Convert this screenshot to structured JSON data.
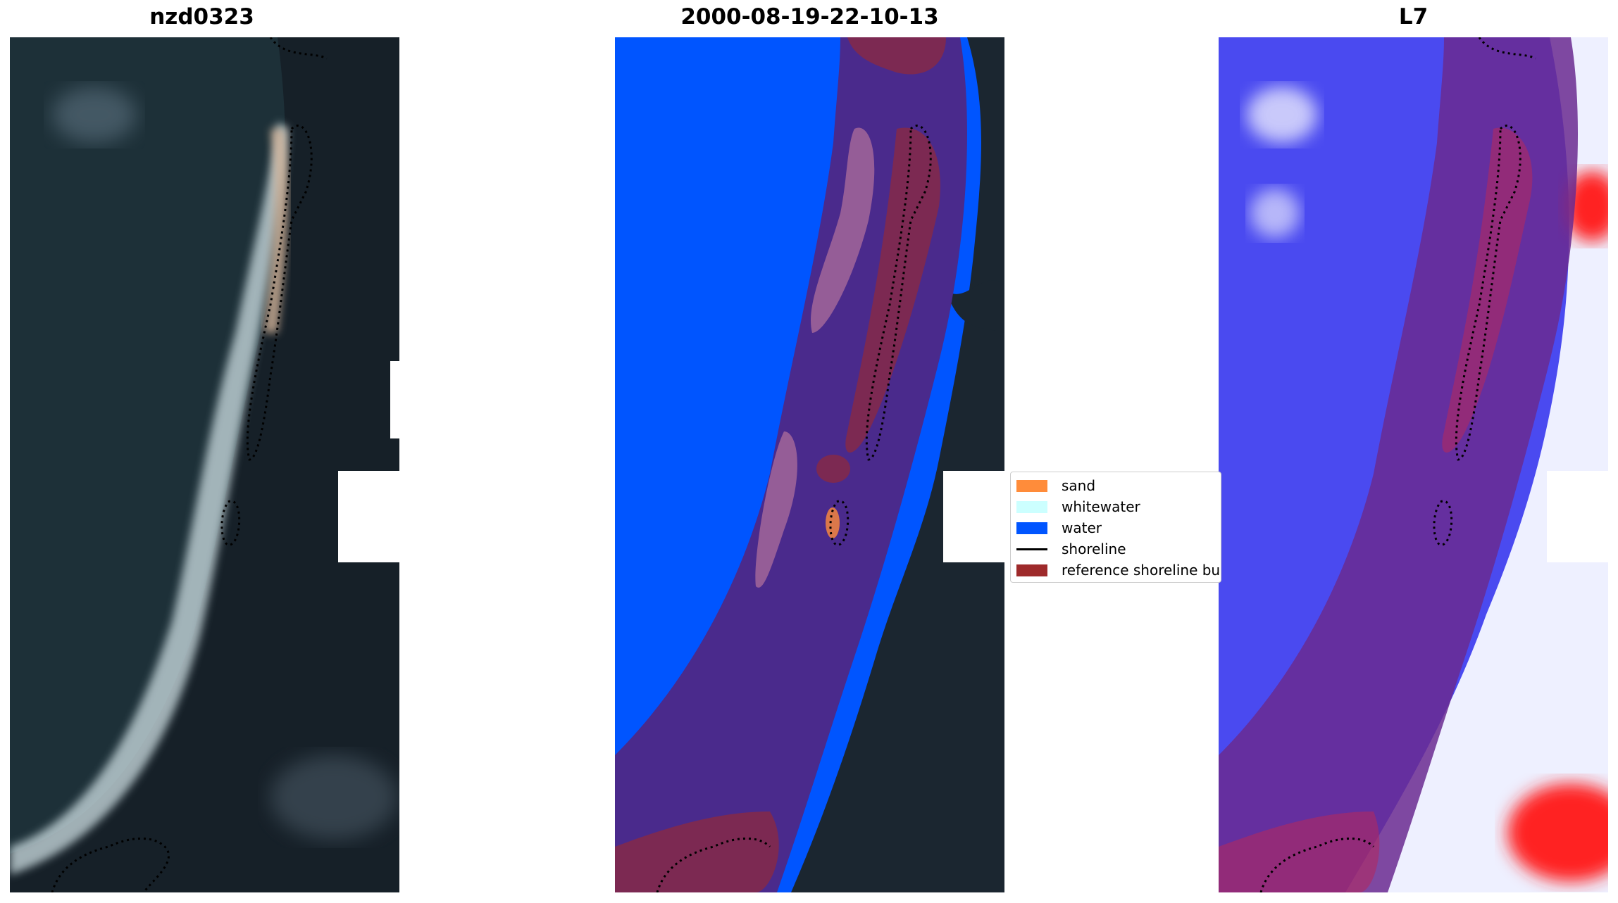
{
  "titles": {
    "left": "nzd0323",
    "middle": "2000-08-19-22-10-13",
    "right": "L7"
  },
  "legend": {
    "items": [
      {
        "label": "sand",
        "color": "#ff8c3a"
      },
      {
        "label": "whitewater",
        "color": "#ccffff"
      },
      {
        "label": "water",
        "color": "#0055ff"
      },
      {
        "label": "shoreline",
        "color": "#000000"
      },
      {
        "label": "reference shoreline bu",
        "color": "#9e2a2b"
      }
    ]
  },
  "colors": {
    "ocean_dark": "#1b2e36",
    "land_dark": "#16222a",
    "buffer_purple": "#4a2a8c",
    "index_blue": "#3a3aff",
    "index_red": "#ff1a1a"
  }
}
